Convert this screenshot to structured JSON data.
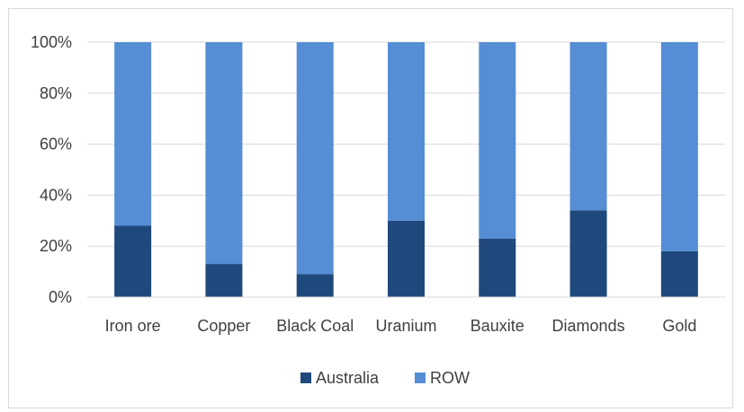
{
  "chart_data": {
    "type": "bar",
    "stacked": true,
    "normalized_percent": true,
    "categories": [
      "Iron ore",
      "Copper",
      "Black Coal",
      "Uranium",
      "Bauxite",
      "Diamonds",
      "Gold"
    ],
    "series": [
      {
        "name": "Australia",
        "color": "#1f497d",
        "values": [
          28,
          13,
          9,
          30,
          23,
          34,
          18
        ]
      },
      {
        "name": "ROW",
        "color": "#558ed5",
        "values": [
          72,
          87,
          91,
          70,
          77,
          66,
          82
        ]
      }
    ],
    "y_ticks": [
      "0%",
      "20%",
      "40%",
      "60%",
      "80%",
      "100%"
    ],
    "ylim": [
      0,
      100
    ],
    "grid": true,
    "legend_position": "bottom",
    "title": "",
    "xlabel": "",
    "ylabel": ""
  }
}
